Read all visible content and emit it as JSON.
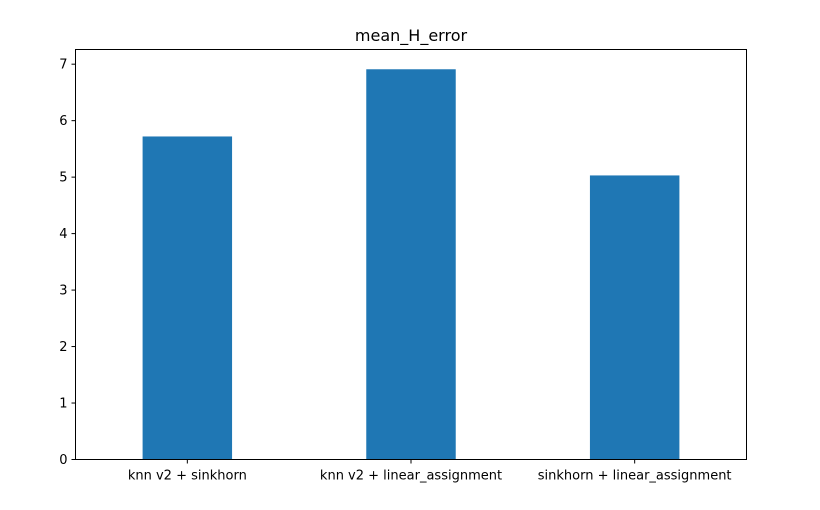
{
  "chart_data": {
    "type": "bar",
    "title": "mean_H_error",
    "xlabel": "",
    "ylabel": "",
    "categories": [
      "knn v2 + sinkhorn",
      "knn v2 + linear_assignment",
      "sinkhorn + linear_assignment"
    ],
    "values": [
      5.72,
      6.91,
      5.03
    ],
    "ylim": [
      0,
      7.26
    ],
    "yticks": [
      0,
      1,
      2,
      3,
      4,
      5,
      6,
      7
    ],
    "bar_color": "#1f77b4",
    "grid": false,
    "legend": "none"
  }
}
